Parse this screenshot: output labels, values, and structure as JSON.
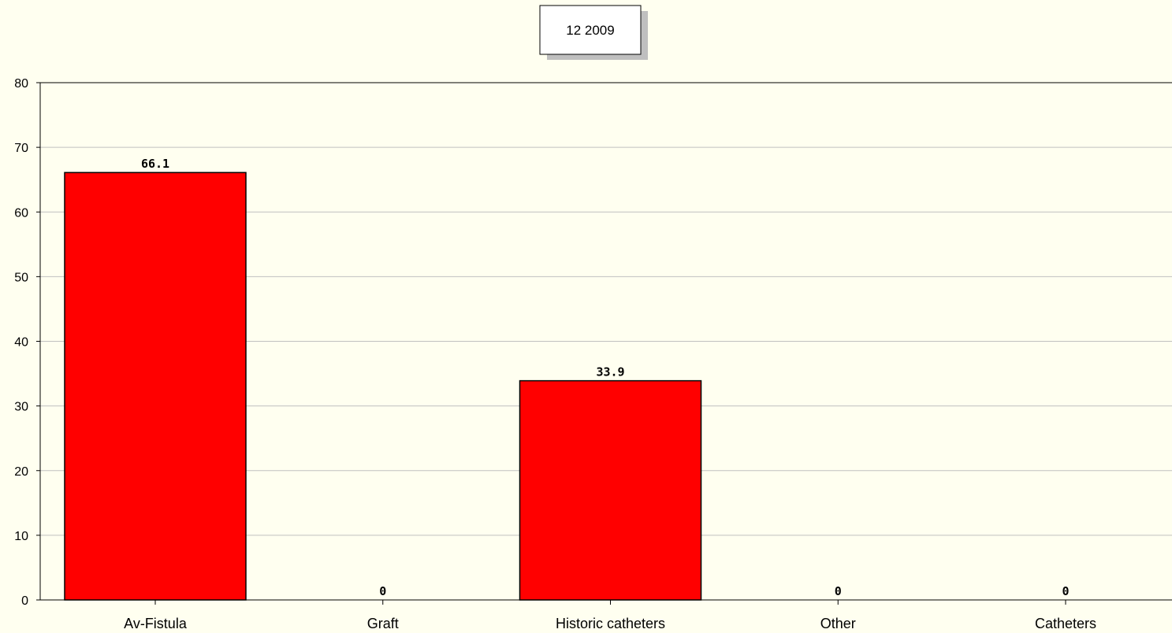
{
  "chart_data": {
    "type": "bar",
    "title": "12 2009",
    "categories": [
      "Av-Fistula",
      "Graft",
      "Historic catheters",
      "Other",
      "Catheters"
    ],
    "values": [
      66.1,
      0,
      33.9,
      0,
      0
    ],
    "data_labels": [
      "66.1",
      "0",
      "33.9",
      "0",
      "0"
    ],
    "ylim": [
      0,
      80
    ],
    "yticks": [
      0,
      10,
      20,
      30,
      40,
      50,
      60,
      70,
      80
    ],
    "grid": true,
    "bar_color": "#FF0000",
    "background_color": "#FFFFF0",
    "grid_color": "#C0C0C0",
    "xlabel": "",
    "ylabel": ""
  }
}
